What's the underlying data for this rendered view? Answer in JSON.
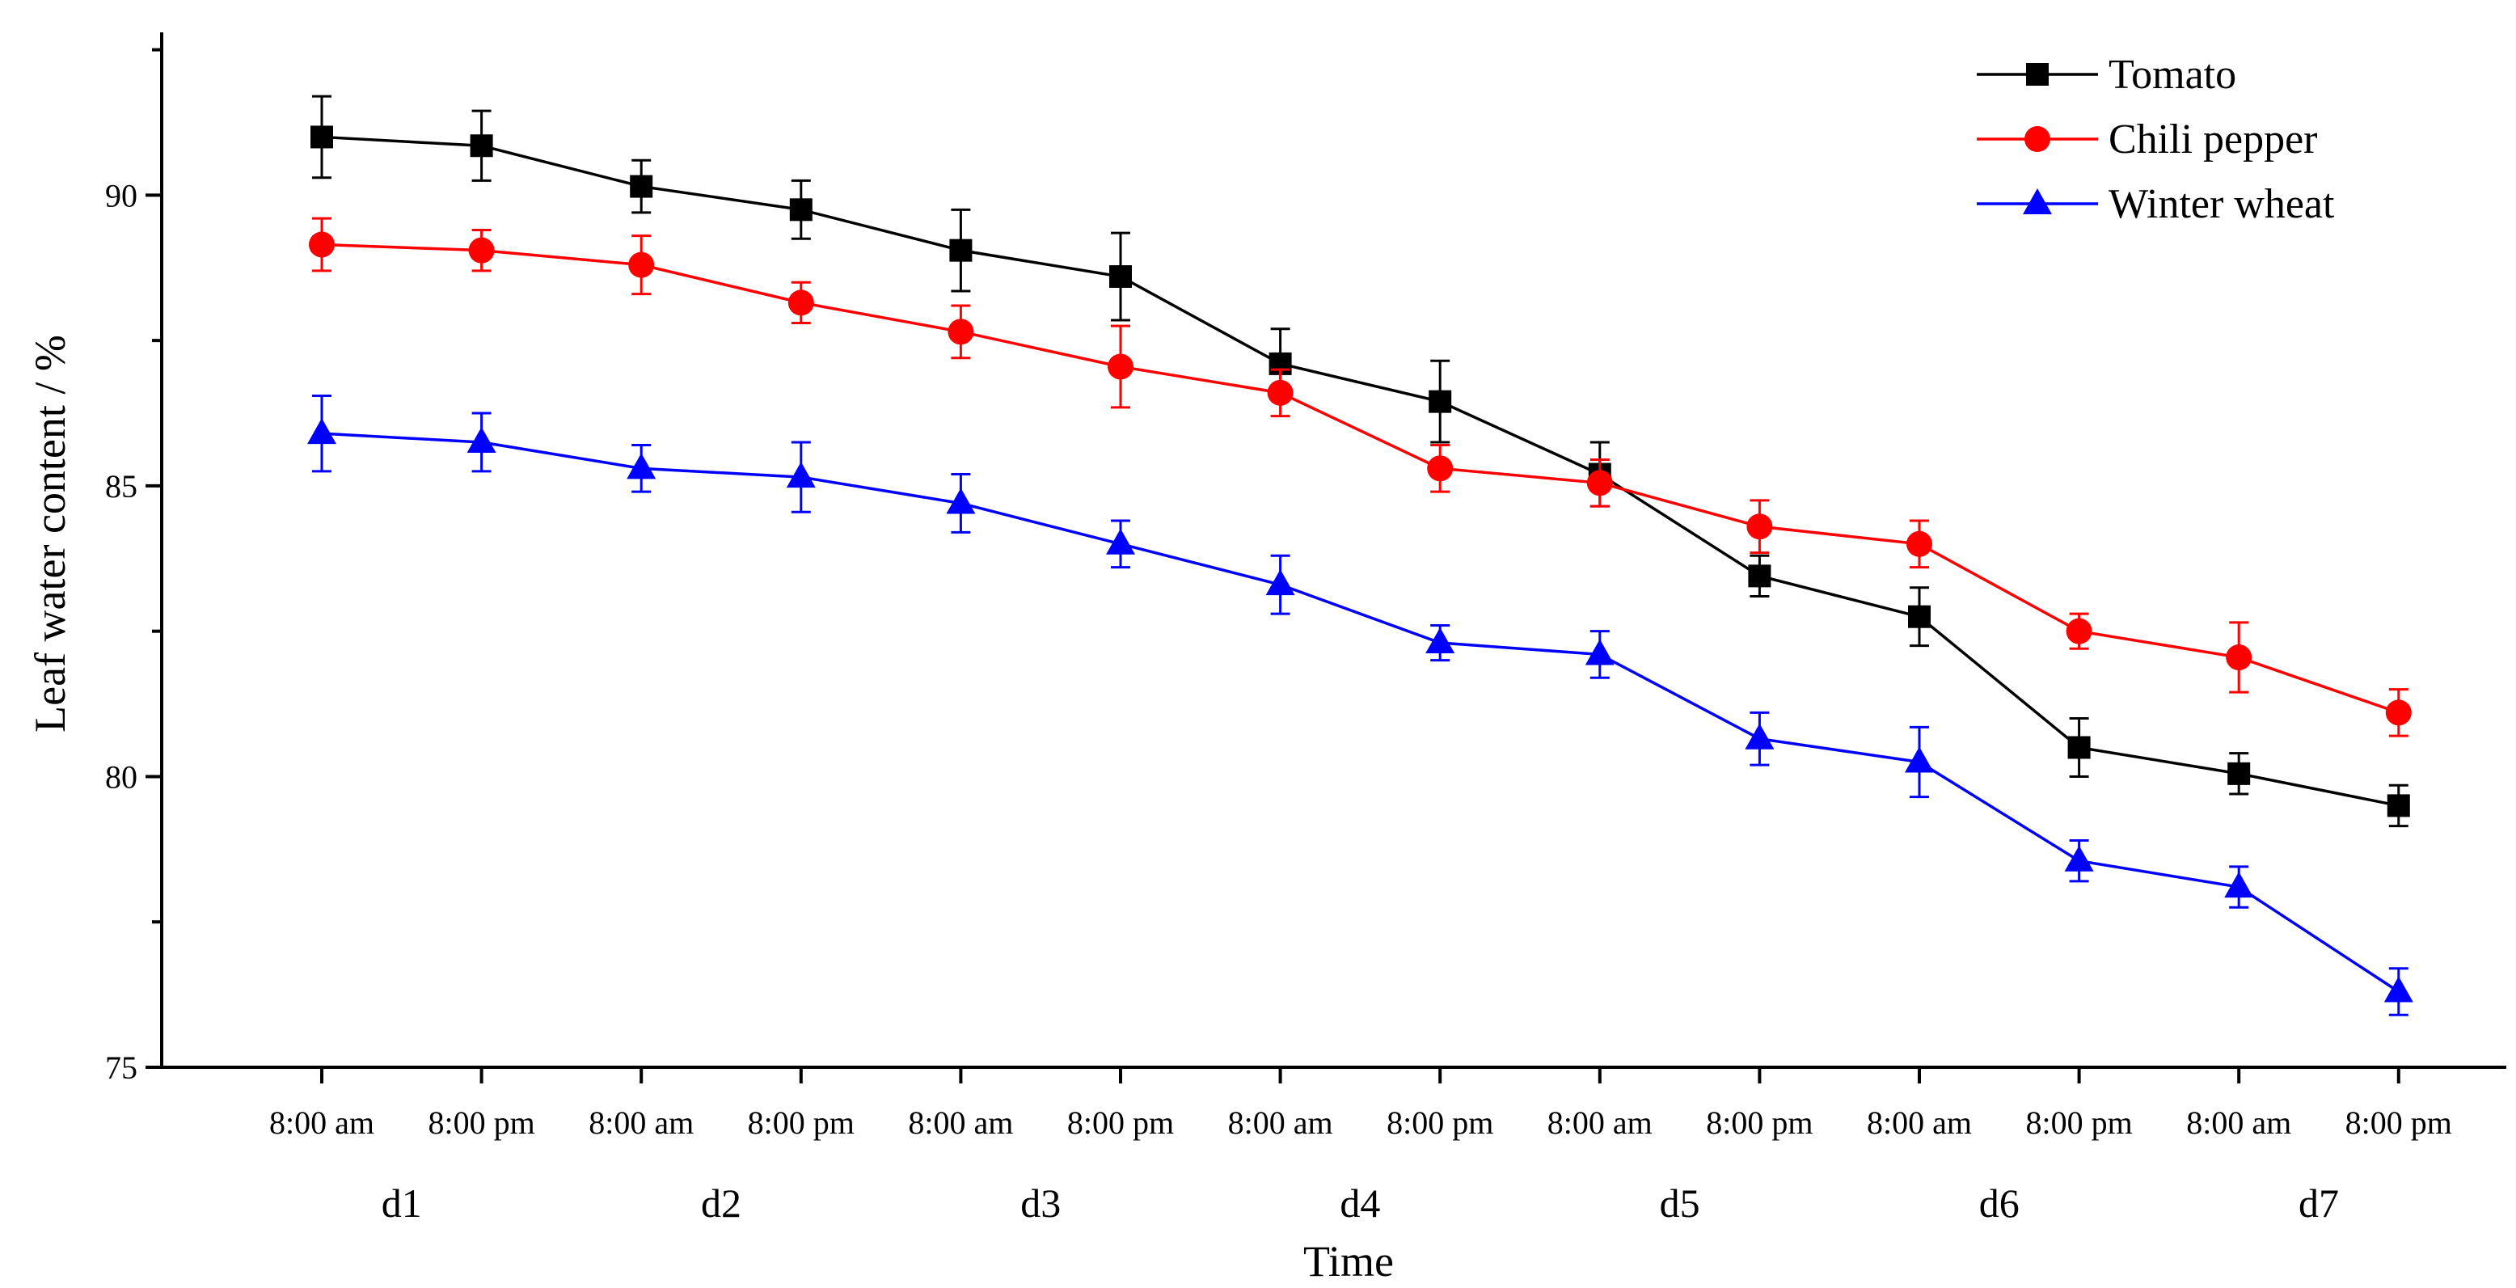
{
  "chart_data": {
    "type": "line",
    "title": "",
    "xlabel": "Time",
    "ylabel": "Leaf water content / %",
    "ylim": [
      75,
      92.8
    ],
    "yticks": [
      75,
      80,
      85,
      90
    ],
    "grid": false,
    "legend_position": "top-right",
    "categories": [
      "8:00 am",
      "8:00 pm",
      "8:00 am",
      "8:00 pm",
      "8:00 am",
      "8:00 pm",
      "8:00 am",
      "8:00 pm",
      "8:00 am",
      "8:00 pm",
      "8:00 am",
      "8:00 pm",
      "8:00 am",
      "8:00 pm"
    ],
    "days": [
      "d1",
      "d2",
      "d3",
      "d4",
      "d5",
      "d6",
      "d7"
    ],
    "series": [
      {
        "name": "Tomato",
        "color": "#000000",
        "marker": "square",
        "values": [
          91.0,
          90.85,
          90.15,
          89.75,
          89.05,
          88.6,
          87.1,
          86.45,
          85.2,
          83.45,
          82.75,
          80.5,
          80.05,
          79.5
        ],
        "errors": [
          0.7,
          0.6,
          0.45,
          0.5,
          0.7,
          0.75,
          0.6,
          0.7,
          0.55,
          0.35,
          0.5,
          0.5,
          0.35,
          0.35
        ]
      },
      {
        "name": "Chili pepper",
        "color": "#ff0000",
        "marker": "circle",
        "values": [
          89.15,
          89.05,
          88.8,
          88.15,
          87.65,
          87.05,
          86.6,
          85.3,
          85.05,
          84.3,
          84.0,
          82.5,
          82.05,
          81.1
        ],
        "errors": [
          0.45,
          0.35,
          0.5,
          0.35,
          0.45,
          0.7,
          0.4,
          0.4,
          0.4,
          0.45,
          0.4,
          0.3,
          0.6,
          0.4
        ]
      },
      {
        "name": "Winter wheat",
        "color": "#0000ff",
        "marker": "triangle",
        "values": [
          85.9,
          85.75,
          85.3,
          85.15,
          84.7,
          84.0,
          83.3,
          82.3,
          82.1,
          80.65,
          80.25,
          78.55,
          78.1,
          76.3
        ],
        "errors": [
          0.65,
          0.5,
          0.4,
          0.6,
          0.5,
          0.4,
          0.5,
          0.3,
          0.4,
          0.45,
          0.6,
          0.35,
          0.35,
          0.4
        ]
      }
    ]
  }
}
